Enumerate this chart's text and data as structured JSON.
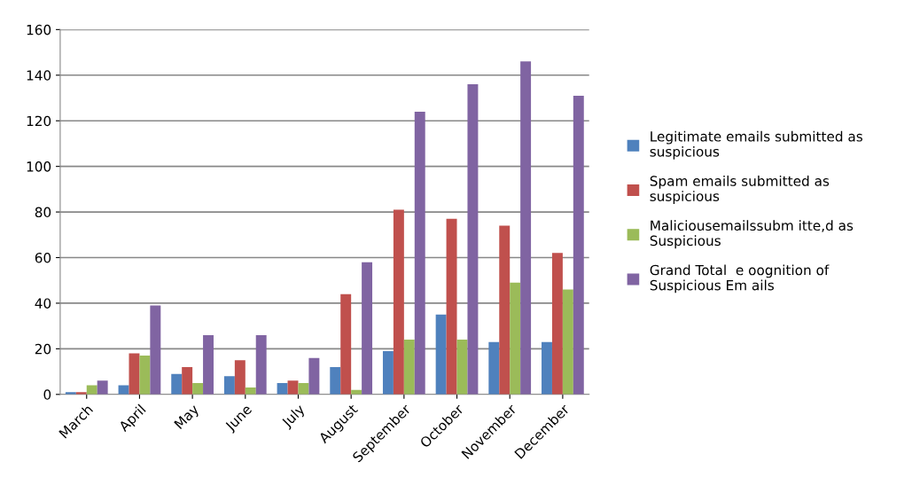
{
  "chart_data": {
    "type": "bar",
    "categories": [
      "March",
      "April",
      "May",
      "June",
      "July",
      "August",
      "September",
      "October",
      "November",
      "December"
    ],
    "series": [
      {
        "name": "Legitimate emails submitted as\nsuspicious",
        "color": "#4f81bd",
        "values": [
          1,
          4,
          9,
          8,
          5,
          12,
          19,
          35,
          23,
          23
        ]
      },
      {
        "name": "Spam emails submitted as\nsuspicious",
        "color": "#c0504d",
        "values": [
          1,
          18,
          12,
          15,
          6,
          44,
          81,
          77,
          74,
          62
        ]
      },
      {
        "name": "Maliciousemailssubm itte,d as\nSuspicious",
        "color": "#9bbb59",
        "values": [
          4,
          17,
          5,
          3,
          5,
          2,
          24,
          24,
          49,
          46
        ]
      },
      {
        "name": "Grand Total  e oognition of\nSuspicious Em ails",
        "color": "#8064a2",
        "values": [
          6,
          39,
          26,
          26,
          16,
          58,
          124,
          136,
          146,
          131
        ]
      }
    ],
    "ylim": [
      0,
      160
    ],
    "yticks": [
      0,
      20,
      40,
      60,
      80,
      100,
      120,
      140,
      160
    ],
    "grid": "y",
    "legend": "right"
  }
}
